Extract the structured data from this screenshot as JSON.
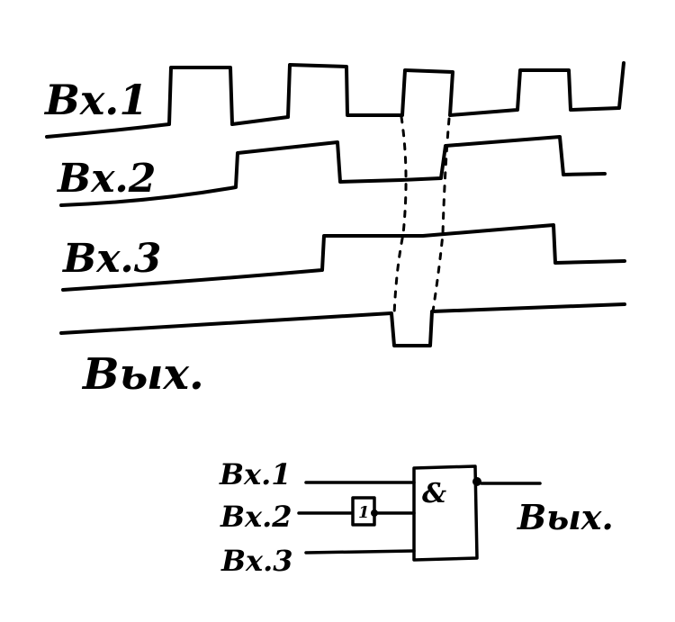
{
  "timing": {
    "labels": {
      "in1": "Вх.1",
      "in2": "Вх.2",
      "in3": "Вх.3",
      "out": "Вых."
    }
  },
  "schematic": {
    "gate_symbol": "&",
    "inputs": [
      "Вх.1",
      "Вх.2",
      "Вх.3"
    ],
    "output": "Вых.",
    "delay_symbol": "1"
  }
}
